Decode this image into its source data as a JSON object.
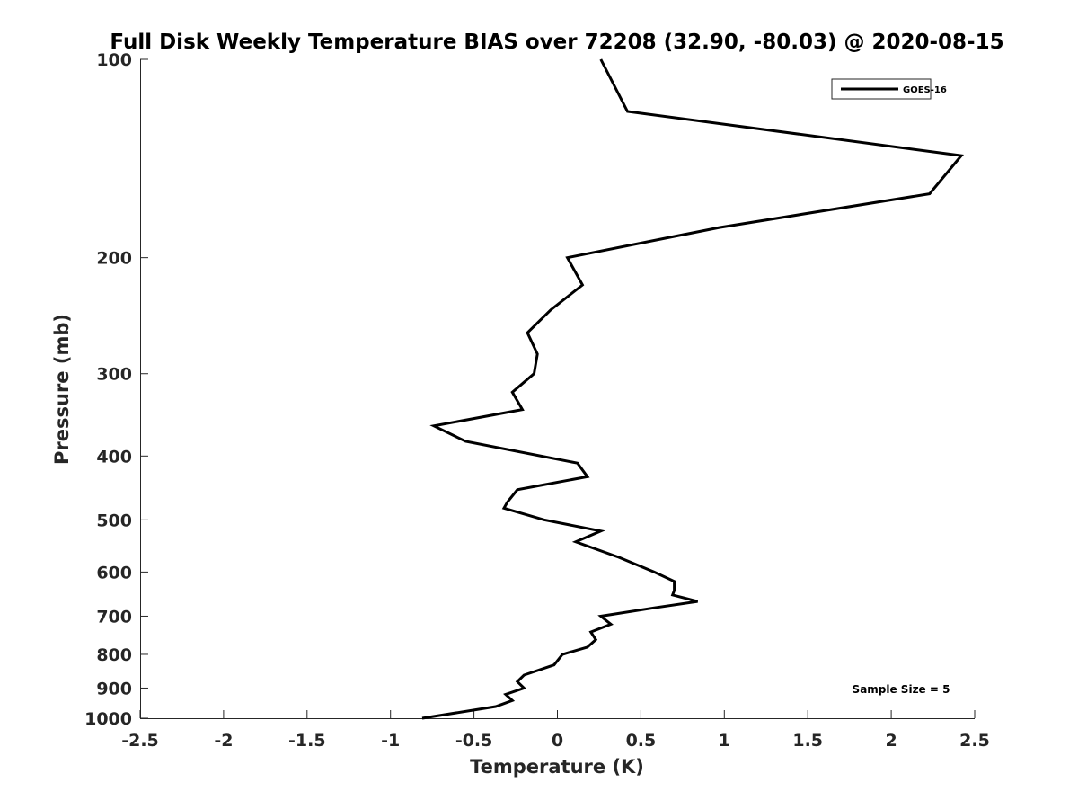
{
  "chart_data": {
    "type": "line",
    "title": "Full Disk Weekly Temperature BIAS over 72208 (32.90, -80.03) @ 2020-08-15",
    "xlabel": "Temperature (K)",
    "ylabel": "Pressure (mb)",
    "xlim": [
      -2.5,
      2.5
    ],
    "ylim": [
      100,
      1000
    ],
    "yscale": "log",
    "yreversed": true,
    "grid": false,
    "legend_position": "top-right",
    "x_ticks": [
      -2.5,
      -2,
      -1.5,
      -1,
      -0.5,
      0,
      0.5,
      1,
      1.5,
      2,
      2.5
    ],
    "x_tick_labels": [
      "-2.5",
      "-2",
      "-1.5",
      "-1",
      "-0.5",
      "0",
      "0.5",
      "1",
      "1.5",
      "2",
      "2.5"
    ],
    "y_ticks": [
      100,
      200,
      300,
      400,
      500,
      600,
      700,
      800,
      900,
      1000
    ],
    "y_tick_labels": [
      "100",
      "200",
      "300",
      "400",
      "500",
      "600",
      "700",
      "800",
      "900",
      "1000"
    ],
    "series": [
      {
        "name": "GOES-16",
        "color": "#000000",
        "points": [
          {
            "x": 0.26,
            "p": 100
          },
          {
            "x": 0.42,
            "p": 120
          },
          {
            "x": 2.42,
            "p": 140
          },
          {
            "x": 2.23,
            "p": 160
          },
          {
            "x": 0.97,
            "p": 180
          },
          {
            "x": 0.06,
            "p": 200
          },
          {
            "x": 0.15,
            "p": 220
          },
          {
            "x": -0.04,
            "p": 240
          },
          {
            "x": -0.18,
            "p": 260
          },
          {
            "x": -0.12,
            "p": 280
          },
          {
            "x": -0.14,
            "p": 300
          },
          {
            "x": -0.27,
            "p": 320
          },
          {
            "x": -0.21,
            "p": 340
          },
          {
            "x": -0.74,
            "p": 360
          },
          {
            "x": -0.55,
            "p": 380
          },
          {
            "x": 0.12,
            "p": 410
          },
          {
            "x": 0.18,
            "p": 430
          },
          {
            "x": -0.24,
            "p": 450
          },
          {
            "x": -0.3,
            "p": 470
          },
          {
            "x": -0.32,
            "p": 480
          },
          {
            "x": -0.08,
            "p": 500
          },
          {
            "x": 0.26,
            "p": 520
          },
          {
            "x": 0.11,
            "p": 540
          },
          {
            "x": 0.37,
            "p": 570
          },
          {
            "x": 0.58,
            "p": 600
          },
          {
            "x": 0.7,
            "p": 620
          },
          {
            "x": 0.7,
            "p": 640
          },
          {
            "x": 0.69,
            "p": 650
          },
          {
            "x": 0.84,
            "p": 665
          },
          {
            "x": 0.58,
            "p": 680
          },
          {
            "x": 0.26,
            "p": 700
          },
          {
            "x": 0.32,
            "p": 720
          },
          {
            "x": 0.2,
            "p": 740
          },
          {
            "x": 0.23,
            "p": 760
          },
          {
            "x": 0.18,
            "p": 780
          },
          {
            "x": 0.03,
            "p": 800
          },
          {
            "x": -0.02,
            "p": 830
          },
          {
            "x": -0.2,
            "p": 860
          },
          {
            "x": -0.24,
            "p": 880
          },
          {
            "x": -0.2,
            "p": 900
          },
          {
            "x": -0.31,
            "p": 920
          },
          {
            "x": -0.27,
            "p": 940
          },
          {
            "x": -0.37,
            "p": 960
          },
          {
            "x": -0.81,
            "p": 1000
          }
        ]
      }
    ],
    "legend": [
      {
        "label": "GOES-16"
      }
    ],
    "annotation": "Sample Size = 5"
  }
}
